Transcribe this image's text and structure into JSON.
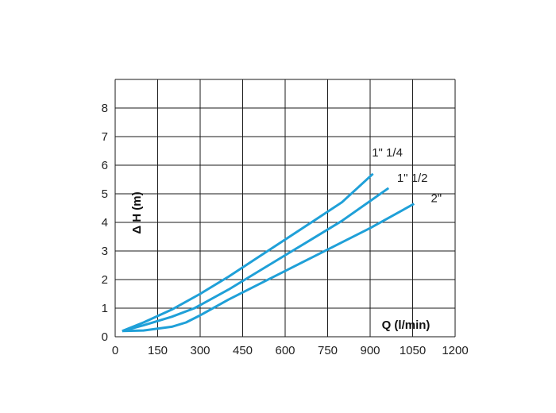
{
  "chart_data": {
    "type": "line",
    "title": "",
    "xlabel": "Q (l/min)",
    "ylabel": "Δ H (m)",
    "xlim": [
      0,
      1200
    ],
    "ylim": [
      0,
      9
    ],
    "xticks": [
      0,
      150,
      300,
      450,
      600,
      750,
      900,
      1050,
      1200
    ],
    "yticks": [
      0,
      1,
      2,
      3,
      4,
      5,
      6,
      7,
      8
    ],
    "xtick_labels": [
      "0",
      "150",
      "300",
      "450",
      "600",
      "750",
      "900",
      "1050",
      "1200"
    ],
    "ytick_labels": [
      "0",
      "1",
      "2",
      "3",
      "4",
      "5",
      "6",
      "7",
      "8"
    ],
    "grid": true,
    "line_color": "#1fa0d8",
    "series": [
      {
        "name": "1\" 1/4",
        "x": [
          25,
          100,
          200,
          300,
          400,
          500,
          600,
          700,
          800,
          910
        ],
        "y": [
          0.2,
          0.5,
          0.95,
          1.5,
          2.1,
          2.75,
          3.4,
          4.05,
          4.7,
          5.7
        ]
      },
      {
        "name": "1\" 1/2",
        "x": [
          25,
          100,
          200,
          280,
          400,
          500,
          600,
          700,
          800,
          965
        ],
        "y": [
          0.2,
          0.4,
          0.7,
          1.0,
          1.65,
          2.25,
          2.85,
          3.45,
          4.05,
          5.2
        ]
      },
      {
        "name": "2\"",
        "x": [
          25,
          100,
          200,
          250,
          300,
          400,
          500,
          600,
          700,
          800,
          900,
          1055
        ],
        "y": [
          0.2,
          0.22,
          0.35,
          0.5,
          0.75,
          1.3,
          1.8,
          2.3,
          2.8,
          3.3,
          3.8,
          4.65
        ]
      }
    ]
  }
}
